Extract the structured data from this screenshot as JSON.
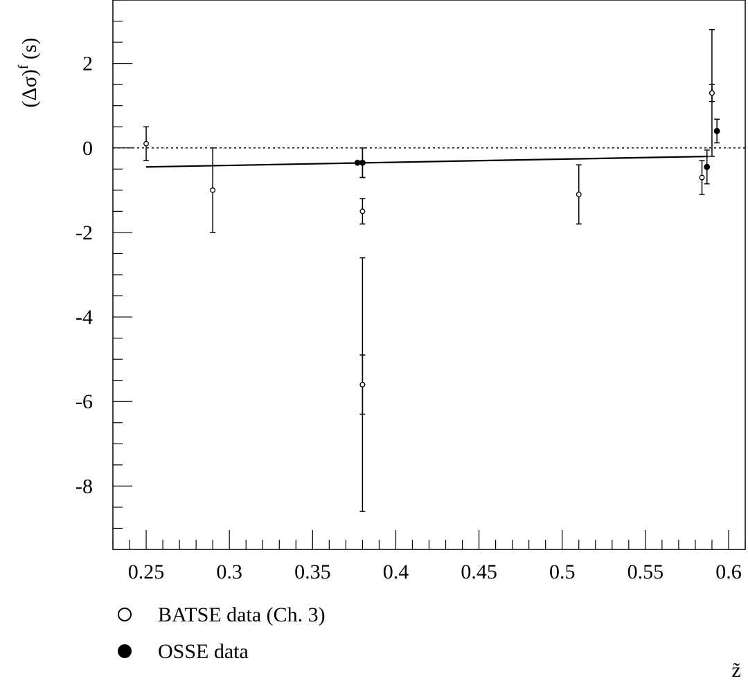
{
  "chart_data": {
    "type": "scatter",
    "title": "",
    "xlabel": "z̃",
    "ylabel": "(Δσ)^f (s)",
    "ylabel_base": "(Δσ)",
    "ylabel_sup": "f",
    "ylabel_unit": "(s)",
    "xlim": [
      0.23,
      0.61
    ],
    "ylim": [
      -9.5,
      3.5
    ],
    "x_ticks": [
      0.25,
      0.3,
      0.35,
      0.4,
      0.45,
      0.5,
      0.55,
      0.6
    ],
    "x_tick_labels": [
      "0.25",
      "0.3",
      "0.35",
      "0.4",
      "0.45",
      "0.5",
      "0.55",
      "0.6"
    ],
    "y_ticks": [
      -8,
      -6,
      -4,
      -2,
      0,
      2
    ],
    "y_tick_labels": [
      "-8",
      "-6",
      "-4",
      "-2",
      "0",
      "2"
    ],
    "x_minor_step": 0.01,
    "y_minor_step": 0.5,
    "reference_line": {
      "y": 0,
      "style": "dotted"
    },
    "series": [
      {
        "name": "BATSE data (Ch. 3)",
        "marker": "open-circle",
        "points": [
          {
            "x": 0.25,
            "y": 0.1,
            "err_low": 0.4,
            "err_high": 0.4
          },
          {
            "x": 0.29,
            "y": -1.0,
            "err_low": 1.0,
            "err_high": 1.0
          },
          {
            "x": 0.38,
            "y": -0.35,
            "err_low": 0.35,
            "err_high": 0.35
          },
          {
            "x": 0.38,
            "y": -1.5,
            "err_low": 0.3,
            "err_high": 0.3
          },
          {
            "x": 0.38,
            "y": -5.6,
            "err_low": 0.7,
            "err_high": 0.7
          },
          {
            "x": 0.38,
            "y": -5.6,
            "err_low": 3.0,
            "err_high": 3.0
          },
          {
            "x": 0.51,
            "y": -1.1,
            "err_low": 0.7,
            "err_high": 0.7
          },
          {
            "x": 0.584,
            "y": -0.7,
            "err_low": 0.4,
            "err_high": 0.4
          },
          {
            "x": 0.59,
            "y": 1.3,
            "err_low": 0.2,
            "err_high": 0.2
          },
          {
            "x": 0.59,
            "y": 1.3,
            "err_low": 1.5,
            "err_high": 1.5
          }
        ]
      },
      {
        "name": "OSSE data",
        "marker": "filled-circle",
        "points": [
          {
            "x": 0.377,
            "y": -0.35,
            "err_low": 0,
            "err_high": 0
          },
          {
            "x": 0.38,
            "y": -0.35,
            "err_low": 0.35,
            "err_high": 0.35
          },
          {
            "x": 0.587,
            "y": -0.45,
            "err_low": 0.4,
            "err_high": 0.4
          },
          {
            "x": 0.593,
            "y": 0.4,
            "err_low": 0.28,
            "err_high": 0.28
          }
        ]
      }
    ],
    "fit_line": {
      "x": [
        0.25,
        0.588
      ],
      "y": [
        -0.45,
        -0.2
      ]
    },
    "legend": {
      "placement": "bottom-left",
      "entries": [
        {
          "label": "BATSE data (Ch. 3)",
          "marker": "open-circle"
        },
        {
          "label": "OSSE data",
          "marker": "filled-circle"
        }
      ]
    }
  }
}
